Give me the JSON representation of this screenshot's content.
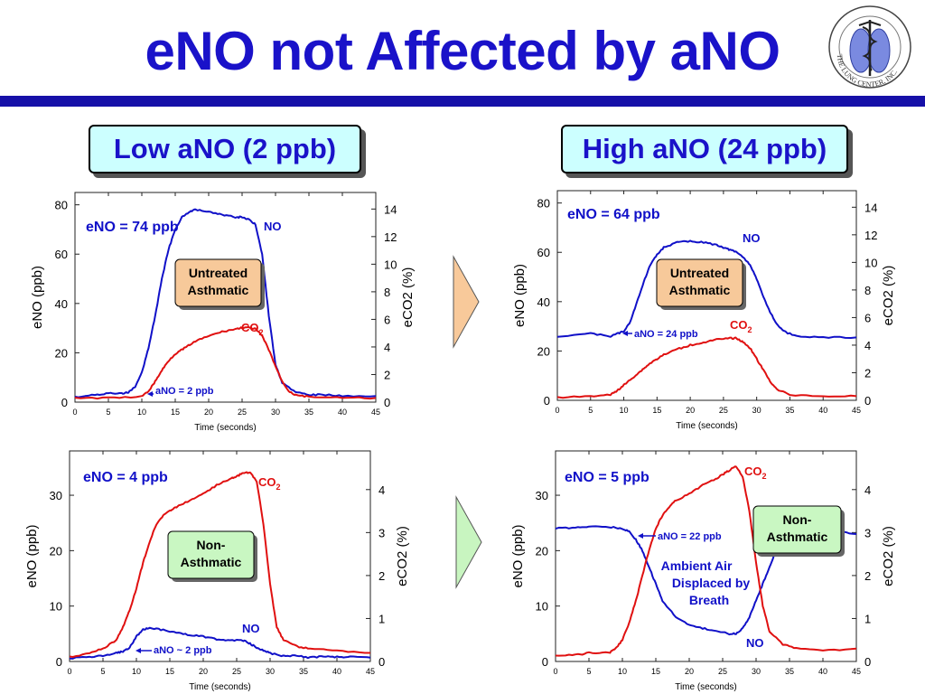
{
  "title": "eNO not Affected by aNO",
  "logo_text": "THE LUNG CENTER, INC.",
  "headers": {
    "low": "Low aNO (2 ppb)",
    "high": "High aNO (24 ppb)"
  },
  "colors": {
    "title": "#1a12c9",
    "no_series": "#1010c8",
    "co2_series": "#e01010",
    "hdr_bg": "#ccffff",
    "arrow_top": "#f8c99a",
    "arrow_bottom": "#c8f5c0",
    "tag_top": "#f7c99a",
    "tag_bottom": "#c9f7c2"
  },
  "chart_data": [
    {
      "id": "tl",
      "type": "line",
      "xlabel": "Time (seconds)",
      "ylabel": "eNO (ppb)",
      "y2label": "eCO2 (%)",
      "xlim": [
        0,
        45
      ],
      "xticks": [
        0,
        5,
        10,
        15,
        20,
        25,
        30,
        35,
        40,
        45
      ],
      "ylim": [
        0,
        85
      ],
      "yticks": [
        0,
        20,
        40,
        60,
        80
      ],
      "y2lim": [
        0,
        15.2
      ],
      "y2ticks": [
        0,
        2,
        4,
        6,
        8,
        10,
        12,
        14
      ],
      "annotations": {
        "eno": "eNO = 74 ppb",
        "tag": [
          "Untreated",
          "Asthmatic"
        ],
        "ano": "aNO = 2 ppb",
        "no_label": "NO",
        "co2_label": "CO",
        "co2_sub": "2"
      },
      "series": [
        {
          "name": "NO",
          "axis": "left",
          "x": [
            0,
            3,
            5,
            7,
            8,
            9,
            10,
            11,
            12,
            13,
            14,
            15,
            16,
            17,
            18,
            20,
            22,
            24,
            25,
            26,
            27,
            28,
            29,
            30,
            31,
            33,
            35,
            37,
            40,
            45
          ],
          "y": [
            2,
            3,
            3.5,
            3.5,
            4,
            6,
            12,
            22,
            35,
            50,
            62,
            70,
            75,
            77,
            78,
            77,
            76,
            75,
            75,
            74,
            72,
            60,
            35,
            15,
            8,
            4,
            3,
            3,
            2.5,
            2.5
          ]
        },
        {
          "name": "CO2",
          "axis": "right",
          "x": [
            0,
            5,
            10,
            11,
            12,
            13,
            14,
            15,
            16,
            17,
            18,
            20,
            22,
            24,
            25,
            26,
            27,
            28,
            29,
            30,
            31,
            32,
            33,
            35,
            40,
            45
          ],
          "y": [
            0.3,
            0.3,
            0.4,
            0.8,
            1.5,
            2.3,
            3.0,
            3.5,
            3.8,
            4.1,
            4.4,
            4.8,
            5.1,
            5.3,
            5.4,
            5.4,
            5.3,
            4.8,
            3.8,
            2.6,
            1.5,
            0.8,
            0.5,
            0.4,
            0.3,
            0.3
          ]
        }
      ]
    },
    {
      "id": "tr",
      "type": "line",
      "xlabel": "Time (seconds)",
      "ylabel": "eNO (ppb)",
      "y2label": "eCO2 (%)",
      "xlim": [
        0,
        45
      ],
      "xticks": [
        0,
        5,
        10,
        15,
        20,
        25,
        30,
        35,
        40,
        45
      ],
      "ylim": [
        0,
        85
      ],
      "yticks": [
        0,
        20,
        40,
        60,
        80
      ],
      "y2lim": [
        0,
        15.2
      ],
      "y2ticks": [
        0,
        2,
        4,
        6,
        8,
        10,
        12,
        14
      ],
      "annotations": {
        "eno": "eNO = 64 ppb",
        "tag": [
          "Untreated",
          "Asthmatic"
        ],
        "ano": "aNO = 24 ppb",
        "no_label": "NO",
        "co2_label": "CO",
        "co2_sub": "2"
      },
      "series": [
        {
          "name": "NO",
          "axis": "left",
          "x": [
            0,
            5,
            8,
            9,
            10,
            11,
            12,
            13,
            14,
            15,
            16,
            18,
            20,
            22,
            24,
            25,
            26,
            27,
            28,
            29,
            30,
            31,
            32,
            33,
            34,
            36,
            40,
            45
          ],
          "y": [
            26,
            27,
            26,
            27,
            28,
            32,
            40,
            48,
            55,
            59,
            62,
            64,
            64.5,
            64,
            63,
            62,
            61,
            60,
            58,
            55,
            49,
            42,
            36,
            31,
            28,
            26,
            25.5,
            25.5
          ]
        },
        {
          "name": "CO2",
          "axis": "right",
          "x": [
            0,
            5,
            8,
            9,
            10,
            11,
            12,
            13,
            14,
            15,
            16,
            18,
            20,
            22,
            24,
            26,
            27,
            28,
            29,
            30,
            31,
            32,
            33,
            35,
            40,
            45
          ],
          "y": [
            0.2,
            0.3,
            0.4,
            0.7,
            1.1,
            1.5,
            1.9,
            2.3,
            2.7,
            3.0,
            3.3,
            3.7,
            4.0,
            4.2,
            4.4,
            4.5,
            4.5,
            4.2,
            3.8,
            3.0,
            2.2,
            1.4,
            0.8,
            0.4,
            0.3,
            0.3
          ]
        }
      ]
    },
    {
      "id": "bl",
      "type": "line",
      "xlabel": "Time (seconds)",
      "ylabel": "eNO (ppb)",
      "y2label": "eCO2 (%)",
      "xlim": [
        0,
        45
      ],
      "xticks": [
        0,
        5,
        10,
        15,
        20,
        25,
        30,
        35,
        40,
        45
      ],
      "ylim": [
        0,
        38
      ],
      "yticks": [
        0,
        10,
        20,
        30
      ],
      "y2lim": [
        0,
        4.9
      ],
      "y2ticks": [
        0,
        1,
        2,
        3,
        4
      ],
      "annotations": {
        "eno": "eNO = 4 ppb",
        "tag": [
          "Non-",
          "Asthmatic"
        ],
        "ano": "aNO ~ 2 ppb",
        "no_label": "NO",
        "co2_label": "CO",
        "co2_sub": "2"
      },
      "series": [
        {
          "name": "NO",
          "axis": "left",
          "x": [
            0,
            3,
            5,
            7,
            8,
            9,
            10,
            11,
            12,
            14,
            16,
            18,
            20,
            22,
            24,
            26,
            27,
            28,
            29,
            30,
            32,
            34,
            36,
            38,
            40,
            42,
            45
          ],
          "y": [
            0.6,
            0.8,
            1.0,
            1.5,
            1.8,
            2.5,
            4.5,
            5.8,
            6.0,
            5.7,
            5.2,
            4.8,
            4.5,
            4.0,
            3.8,
            3.8,
            3.2,
            2.5,
            2.0,
            1.5,
            1.0,
            1.0,
            0.7,
            0.9,
            0.8,
            0.8,
            0.7
          ]
        },
        {
          "name": "CO2",
          "axis": "right",
          "x": [
            0,
            3,
            5,
            7,
            8,
            9,
            10,
            11,
            12,
            13,
            14,
            15,
            16,
            18,
            20,
            22,
            24,
            25,
            26,
            27,
            28,
            29,
            30,
            31,
            32,
            34,
            36,
            40,
            45
          ],
          "y": [
            0.1,
            0.2,
            0.3,
            0.5,
            0.8,
            1.2,
            1.7,
            2.3,
            2.8,
            3.2,
            3.4,
            3.5,
            3.6,
            3.75,
            3.9,
            4.1,
            4.25,
            4.3,
            4.4,
            4.4,
            4.2,
            3.2,
            1.8,
            0.8,
            0.5,
            0.35,
            0.3,
            0.25,
            0.2
          ]
        }
      ]
    },
    {
      "id": "br",
      "type": "line",
      "xlabel": "Time (seconds)",
      "ylabel": "eNO (ppb)",
      "y2label": "eCO2 (%)",
      "xlim": [
        0,
        45
      ],
      "xticks": [
        0,
        5,
        10,
        15,
        20,
        25,
        30,
        35,
        40,
        45
      ],
      "ylim": [
        0,
        38
      ],
      "yticks": [
        0,
        10,
        20,
        30
      ],
      "y2lim": [
        0,
        4.9
      ],
      "y2ticks": [
        0,
        1,
        2,
        3,
        4
      ],
      "annotations": {
        "eno": "eNO = 5 ppb",
        "tag": [
          "Non-",
          "Asthmatic"
        ],
        "ano": "aNO = 22 ppb",
        "amb": [
          "Ambient Air",
          "Displaced by",
          "Breath"
        ],
        "no_label": "NO",
        "co2_label": "CO",
        "co2_sub": "2"
      },
      "series": [
        {
          "name": "NO",
          "axis": "left",
          "x": [
            0,
            3,
            5,
            8,
            10,
            11,
            12,
            13,
            14,
            15,
            16,
            18,
            20,
            22,
            24,
            26,
            27,
            28,
            29,
            30,
            31,
            32,
            33,
            34,
            36,
            38,
            40,
            42,
            45
          ],
          "y": [
            24,
            24.2,
            24.3,
            24.3,
            24,
            23.5,
            22,
            20,
            17,
            14,
            11,
            8,
            6.5,
            6,
            5.5,
            5,
            5,
            6,
            8,
            11,
            14,
            17,
            20,
            22.5,
            23,
            23,
            23,
            23.5,
            23
          ]
        },
        {
          "name": "CO2",
          "axis": "right",
          "x": [
            0,
            3,
            5,
            8,
            9,
            10,
            11,
            12,
            13,
            14,
            15,
            16,
            17,
            18,
            20,
            22,
            24,
            25,
            26,
            27,
            28,
            29,
            30,
            31,
            32,
            34,
            36,
            40,
            45
          ],
          "y": [
            0.15,
            0.15,
            0.2,
            0.2,
            0.3,
            0.5,
            0.9,
            1.4,
            2.0,
            2.6,
            3.1,
            3.4,
            3.6,
            3.75,
            3.9,
            4.1,
            4.25,
            4.35,
            4.45,
            4.55,
            4.3,
            3.5,
            2.3,
            1.3,
            0.7,
            0.4,
            0.3,
            0.25,
            0.3
          ]
        }
      ]
    }
  ]
}
